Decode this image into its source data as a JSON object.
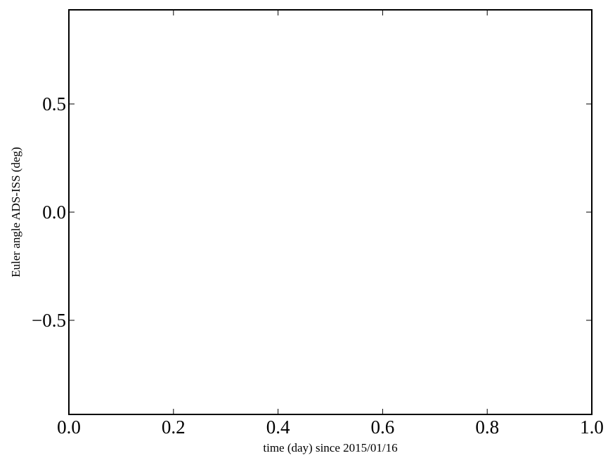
{
  "chart_data": {
    "type": "line",
    "title": "",
    "xlabel": "time (day) since 2015/01/16",
    "ylabel": "Euler angle ADS-ISS (deg)",
    "xlim": [
      0.0,
      1.0
    ],
    "ylim": [
      -0.935,
      0.935
    ],
    "xticks": [
      0.0,
      0.2,
      0.4,
      0.6,
      0.8,
      1.0
    ],
    "xtick_labels": [
      "0.0",
      "0.2",
      "0.4",
      "0.6",
      "0.8",
      "1.0"
    ],
    "yticks": [
      -0.5,
      0.0,
      0.5
    ],
    "ytick_labels": [
      "−0.5",
      "0.0",
      "0.5"
    ],
    "grid": false,
    "series": []
  }
}
